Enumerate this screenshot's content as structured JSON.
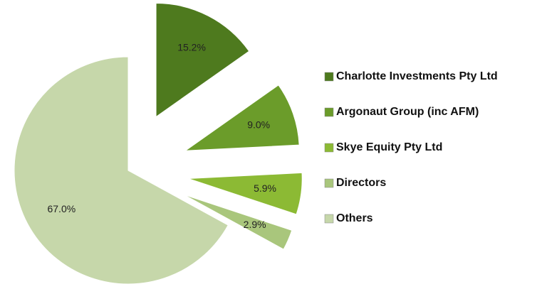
{
  "chart_data": {
    "type": "pie",
    "categories": [
      "Charlotte Investments Pty Ltd",
      "Argonaut Group (inc AFM)",
      "Skye Equity Pty Ltd",
      "Directors",
      "Others"
    ],
    "values": [
      15.2,
      9.0,
      5.9,
      2.9,
      67.0
    ],
    "value_labels": [
      "15.2%",
      "9.0%",
      "5.9%",
      "2.9%",
      "67.0%"
    ],
    "colors": [
      "#4e7a1e",
      "#6b9c2a",
      "#8cba34",
      "#a9c67c",
      "#c6d7aa"
    ],
    "legend": "right"
  }
}
